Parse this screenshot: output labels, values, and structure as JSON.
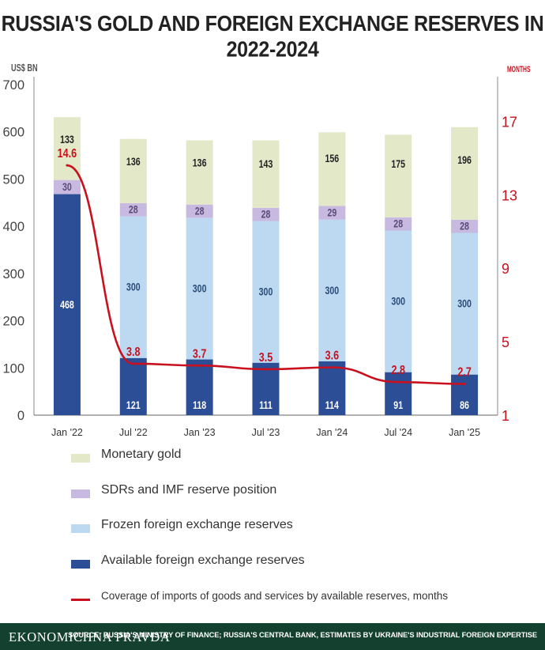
{
  "title": "RUSSIA'S GOLD AND FOREIGN EXCHANGE RESERVES IN 2022-2024",
  "colors": {
    "monetary_gold": "#e2e8c8",
    "sdr": "#c7b9e0",
    "frozen": "#bcd9f1",
    "available": "#2c4e96",
    "coverage_line": "#c8101e",
    "footer": "#14402f"
  },
  "chart_data": {
    "type": "bar",
    "stacked": true,
    "categories": [
      "Jan '22",
      "Jul '22",
      "Jan '23",
      "Jul '23",
      "Jan '24",
      "Jul '24",
      "Jan '25"
    ],
    "ylabel": "US$ BN",
    "ylim": [
      0,
      700
    ],
    "yticks": [
      0,
      100,
      200,
      300,
      400,
      500,
      600,
      700
    ],
    "y2label": "MONTHS",
    "y2lim": [
      1,
      19
    ],
    "y2ticks": [
      1,
      5,
      9,
      13,
      17
    ],
    "grid": false,
    "series": [
      {
        "name": "Available foreign exchange reserves",
        "values": [
          468,
          121,
          118,
          111,
          114,
          91,
          86
        ],
        "labels": [
          "468",
          "121",
          "118",
          "111",
          "114",
          "91",
          "86"
        ]
      },
      {
        "name": "Frozen foreign exchange reserves",
        "values": [
          0,
          300,
          300,
          300,
          300,
          300,
          300
        ],
        "labels": [
          "",
          "300",
          "300",
          "300",
          "300",
          "300",
          "300"
        ]
      },
      {
        "name": "SDRs and IMF reserve position",
        "values": [
          30,
          28,
          28,
          28,
          29,
          28,
          28
        ],
        "labels": [
          "30",
          "28",
          "28",
          "28",
          "29",
          "28",
          "28"
        ]
      },
      {
        "name": "Monetary gold",
        "values": [
          133,
          136,
          136,
          143,
          156,
          175,
          196
        ],
        "labels": [
          "133",
          "136",
          "136",
          "143",
          "156",
          "175",
          "196"
        ]
      }
    ],
    "line": {
      "name": "Coverage of imports of goods and services by available reserves, months",
      "axis": "right",
      "values": [
        14.6,
        3.8,
        3.7,
        3.5,
        3.6,
        2.8,
        2.7
      ],
      "labels": [
        "14.6",
        "3.8",
        "3.7",
        "3.5",
        "3.6",
        "2.8",
        "2.7"
      ]
    }
  },
  "legend": [
    {
      "key": "monetary_gold",
      "label": "Monetary gold"
    },
    {
      "key": "sdr",
      "label": "SDRs and IMF reserve position"
    },
    {
      "key": "frozen",
      "label": "Frozen foreign exchange reserves"
    },
    {
      "key": "available",
      "label": "Available foreign exchange reserves"
    }
  ],
  "legend_line_label": "Coverage of imports of goods and services by available reserves, months",
  "footer": {
    "brand": "EKONOMICHNA PRAVDA",
    "source": "SOURCE: RUSSIA'S MINISTRY OF FINANCE; RUSSIA'S CENTRAL BANK, ESTIMATES BY UKRAINE'S INDUSTRIAL FOREIGN EXPERTISE"
  }
}
